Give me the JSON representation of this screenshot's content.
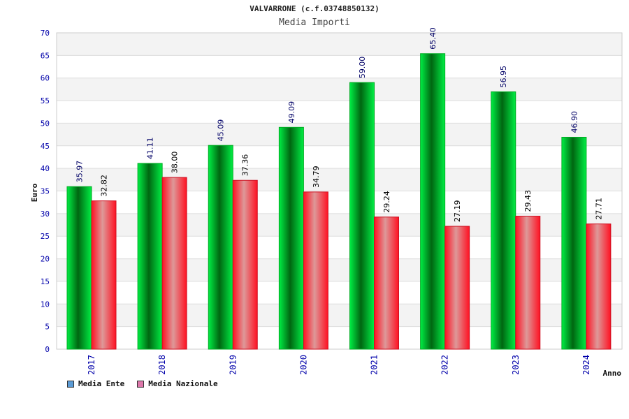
{
  "chart_data": {
    "type": "bar",
    "title": "VALVARRONE (c.f.03748850132)",
    "subtitle": "Media Importi",
    "xlabel": "Anno",
    "ylabel": "Euro",
    "ylim": [
      0,
      70
    ],
    "yticks": [
      0,
      5,
      10,
      15,
      20,
      25,
      30,
      35,
      40,
      45,
      50,
      55,
      60,
      65,
      70
    ],
    "categories": [
      "2017",
      "2018",
      "2019",
      "2020",
      "2021",
      "2022",
      "2023",
      "2024"
    ],
    "series": [
      {
        "name": "Media Ente",
        "values": [
          35.97,
          41.11,
          45.09,
          49.09,
          59.0,
          65.4,
          56.95,
          46.9
        ],
        "labels": [
          "35.97",
          "41.11",
          "45.09",
          "49.09",
          "59.00",
          "65.40",
          "56.95",
          "46.90"
        ],
        "color": "#00cc33",
        "legend_color": "#5b9bd5"
      },
      {
        "name": "Media Nazionale",
        "values": [
          32.82,
          38.0,
          37.36,
          34.79,
          29.24,
          27.19,
          29.43,
          27.71
        ],
        "labels": [
          "32.82",
          "38.00",
          "37.36",
          "34.79",
          "29.24",
          "27.19",
          "29.43",
          "27.71"
        ],
        "color": "#ee2233",
        "legend_color": "#dd77aa"
      }
    ],
    "grid": true,
    "legend_position": "bottom-left"
  }
}
